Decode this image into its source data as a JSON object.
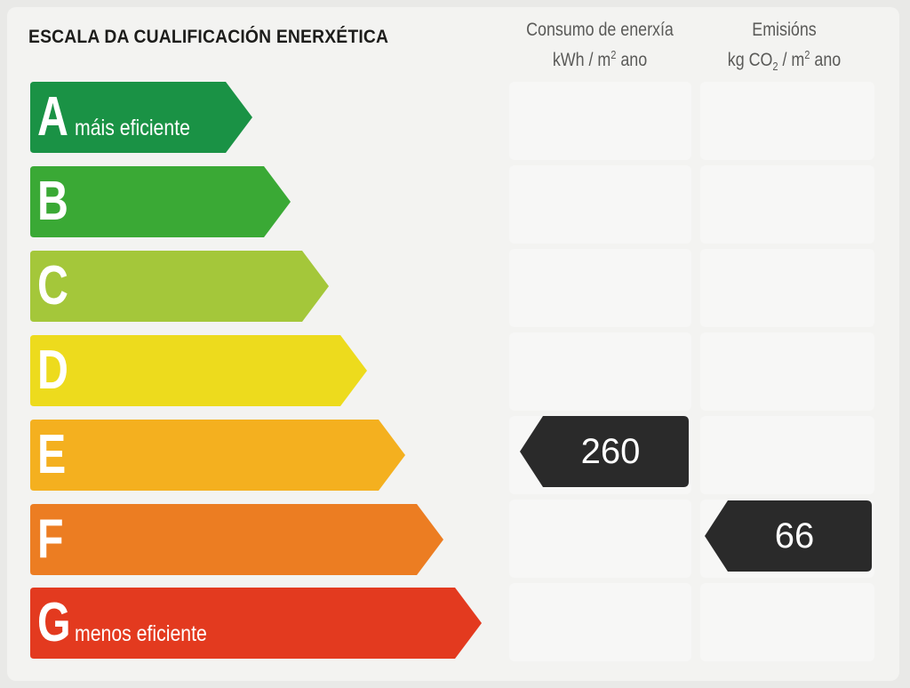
{
  "title": "ESCALA DA CUALIFICACIÓN ENERXÉTICA",
  "columns": {
    "consumo": {
      "line1": "Consumo de enerxía",
      "line2_pre": "kWh / m",
      "line2_sup": "2",
      "line2_post": " ano"
    },
    "emisions": {
      "line1": "Emisións",
      "line2_pre": "kg CO",
      "line2_sub": "2",
      "line2_mid": " / m",
      "line2_sup": "2",
      "line2_post": " ano"
    }
  },
  "scale": [
    {
      "letter": "A",
      "label": "máis eficiente",
      "color": "#1a9245"
    },
    {
      "letter": "B",
      "label": "",
      "color": "#3aa935"
    },
    {
      "letter": "C",
      "label": "",
      "color": "#a4c73a"
    },
    {
      "letter": "D",
      "label": "",
      "color": "#eddb1d"
    },
    {
      "letter": "E",
      "label": "",
      "color": "#f4b01f"
    },
    {
      "letter": "F",
      "label": "",
      "color": "#ec7d22"
    },
    {
      "letter": "G",
      "label": "menos eficiente",
      "color": "#e33a1f"
    }
  ],
  "rating": {
    "consumo": {
      "value": "260",
      "class": "E"
    },
    "emisions": {
      "value": "66",
      "class": "F"
    },
    "pointer_color": "#2a2a2a"
  }
}
